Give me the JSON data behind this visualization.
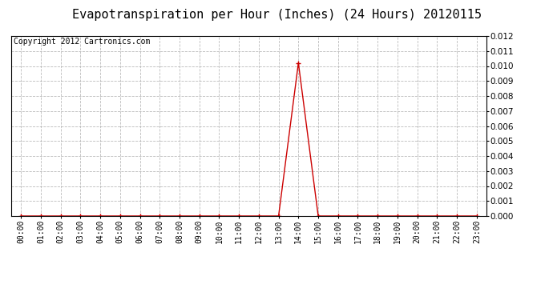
{
  "title": "Evapotranspiration per Hour (Inches) (24 Hours) 20120115",
  "copyright": "Copyright 2012 Cartronics.com",
  "hours": [
    0,
    1,
    2,
    3,
    4,
    5,
    6,
    7,
    8,
    9,
    10,
    11,
    12,
    13,
    14,
    15,
    16,
    17,
    18,
    19,
    20,
    21,
    22,
    23
  ],
  "values": [
    0.0,
    0.0,
    0.0,
    0.0,
    0.0,
    0.0,
    0.0,
    0.0,
    0.0,
    0.0,
    0.0,
    0.0,
    0.0,
    0.0,
    0.0102,
    0.0,
    0.0,
    0.0,
    0.0,
    0.0,
    0.0,
    0.0,
    0.0,
    0.0
  ],
  "line_color": "#cc0000",
  "marker": "+",
  "marker_color": "#cc0000",
  "marker_size": 4,
  "ylim": [
    0.0,
    0.012
  ],
  "yticks": [
    0.0,
    0.001,
    0.002,
    0.003,
    0.004,
    0.005,
    0.006,
    0.007,
    0.008,
    0.009,
    0.01,
    0.011,
    0.012
  ],
  "grid_color": "#bbbbbb",
  "background_color": "#ffffff",
  "title_fontsize": 11,
  "copyright_fontsize": 7,
  "tick_label_fontsize": 7,
  "ytick_label_fontsize": 7.5
}
